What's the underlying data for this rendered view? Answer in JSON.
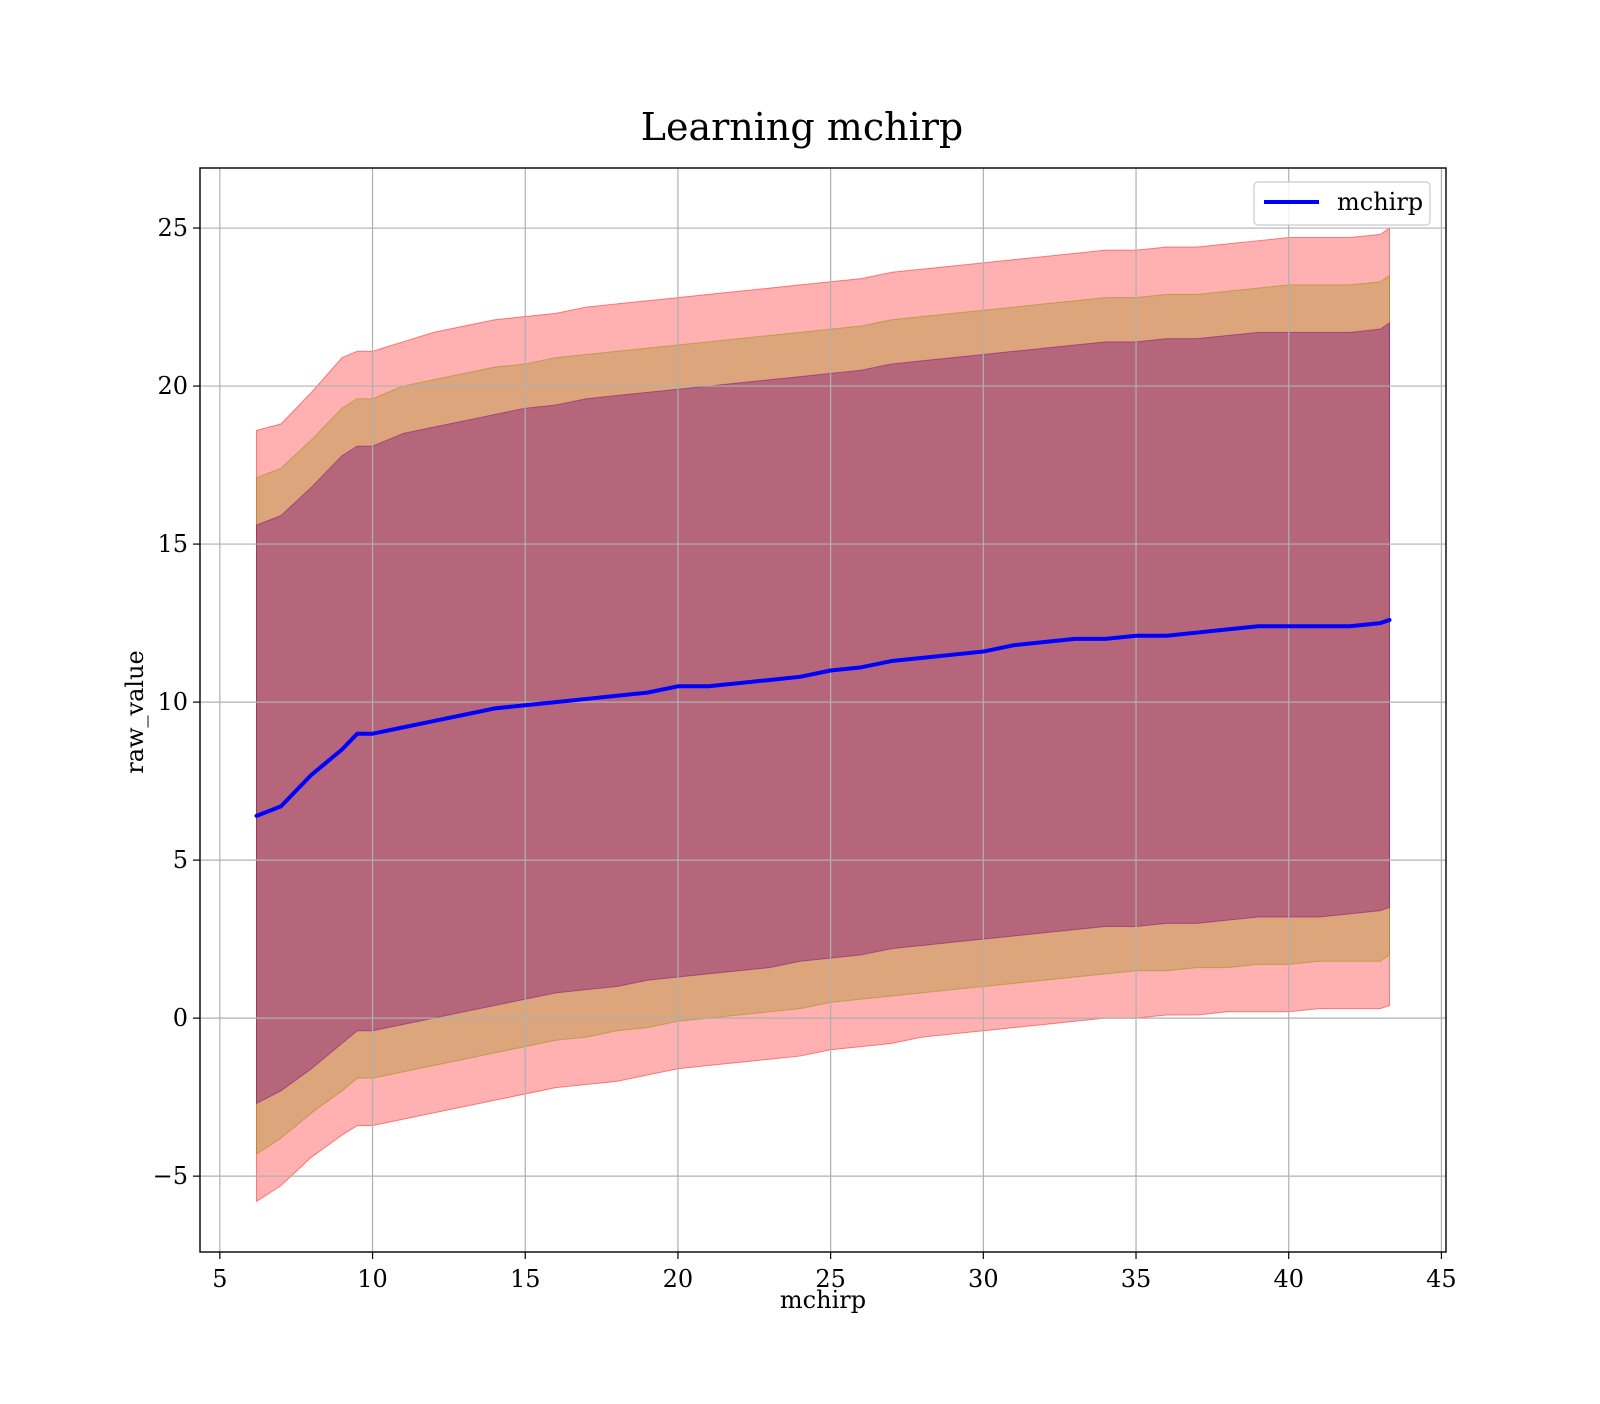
{
  "chart_data": {
    "type": "line",
    "title": "Learning mchirp",
    "xlabel": "mchirp",
    "ylabel": "raw_value",
    "xlim": [
      4.35,
      45.15
    ],
    "ylim": [
      -7.4,
      26.9
    ],
    "xticks": [
      5,
      10,
      15,
      20,
      25,
      30,
      35,
      40,
      45
    ],
    "xtick_labels": [
      "5",
      "10",
      "15",
      "20",
      "25",
      "30",
      "35",
      "40",
      "45"
    ],
    "yticks": [
      -5,
      0,
      5,
      10,
      15,
      20,
      25
    ],
    "ytick_labels": [
      "−5",
      "0",
      "5",
      "10",
      "15",
      "20",
      "25"
    ],
    "grid": true,
    "legend_position": "top-right",
    "colors": {
      "line": "#0000ff",
      "band_outer": "#ff0000",
      "band_middle": "#8c8c00",
      "band_inner": "#7a007a",
      "grid": "#b0b0b0"
    },
    "x": [
      6.2,
      7.0,
      8.0,
      9.0,
      9.5,
      10.0,
      11.0,
      12.0,
      13.0,
      14.0,
      15.0,
      16.0,
      17.0,
      18.0,
      19.0,
      20.0,
      21.0,
      22.0,
      23.0,
      24.0,
      25.0,
      26.0,
      27.0,
      28.0,
      29.0,
      30.0,
      31.0,
      32.0,
      33.0,
      34.0,
      35.0,
      36.0,
      37.0,
      38.0,
      39.0,
      40.0,
      41.0,
      42.0,
      43.0,
      43.3
    ],
    "series": [
      {
        "name": "mchirp",
        "values": [
          6.4,
          6.7,
          7.7,
          8.5,
          9.0,
          9.0,
          9.2,
          9.4,
          9.6,
          9.8,
          9.9,
          10.0,
          10.1,
          10.2,
          10.3,
          10.5,
          10.5,
          10.6,
          10.7,
          10.8,
          11.0,
          11.1,
          11.3,
          11.4,
          11.5,
          11.6,
          11.8,
          11.9,
          12.0,
          12.0,
          12.1,
          12.1,
          12.2,
          12.3,
          12.4,
          12.4,
          12.4,
          12.4,
          12.5,
          12.6
        ]
      }
    ],
    "bands": [
      {
        "level": "outer",
        "lower": [
          -5.8,
          -5.3,
          -4.4,
          -3.7,
          -3.4,
          -3.4,
          -3.2,
          -3.0,
          -2.8,
          -2.6,
          -2.4,
          -2.2,
          -2.1,
          -2.0,
          -1.8,
          -1.6,
          -1.5,
          -1.4,
          -1.3,
          -1.2,
          -1.0,
          -0.9,
          -0.8,
          -0.6,
          -0.5,
          -0.4,
          -0.3,
          -0.2,
          -0.1,
          0.0,
          0.0,
          0.1,
          0.1,
          0.2,
          0.2,
          0.2,
          0.3,
          0.3,
          0.3,
          0.4
        ],
        "upper": [
          18.6,
          18.8,
          19.8,
          20.9,
          21.1,
          21.1,
          21.4,
          21.7,
          21.9,
          22.1,
          22.2,
          22.3,
          22.5,
          22.6,
          22.7,
          22.8,
          22.9,
          23.0,
          23.1,
          23.2,
          23.3,
          23.4,
          23.6,
          23.7,
          23.8,
          23.9,
          24.0,
          24.1,
          24.2,
          24.3,
          24.3,
          24.4,
          24.4,
          24.5,
          24.6,
          24.7,
          24.7,
          24.7,
          24.8,
          25.0
        ]
      },
      {
        "level": "middle",
        "lower": [
          -4.3,
          -3.8,
          -3.0,
          -2.3,
          -1.9,
          -1.9,
          -1.7,
          -1.5,
          -1.3,
          -1.1,
          -0.9,
          -0.7,
          -0.6,
          -0.4,
          -0.3,
          -0.1,
          0.0,
          0.1,
          0.2,
          0.3,
          0.5,
          0.6,
          0.7,
          0.8,
          0.9,
          1.0,
          1.1,
          1.2,
          1.3,
          1.4,
          1.5,
          1.5,
          1.6,
          1.6,
          1.7,
          1.7,
          1.8,
          1.8,
          1.8,
          2.0
        ]
      },
      {
        "level": "inner",
        "lower": [
          -2.7,
          -2.3,
          -1.6,
          -0.8,
          -0.4,
          -0.4,
          -0.2,
          0.0,
          0.2,
          0.4,
          0.6,
          0.8,
          0.9,
          1.0,
          1.2,
          1.3,
          1.4,
          1.5,
          1.6,
          1.8,
          1.9,
          2.0,
          2.2,
          2.3,
          2.4,
          2.5,
          2.6,
          2.7,
          2.8,
          2.9,
          2.9,
          3.0,
          3.0,
          3.1,
          3.2,
          3.2,
          3.2,
          3.3,
          3.4,
          3.5
        ]
      }
    ],
    "band_uppers": {
      "middle": [
        17.1,
        17.4,
        18.3,
        19.3,
        19.6,
        19.6,
        20.0,
        20.2,
        20.4,
        20.6,
        20.7,
        20.9,
        21.0,
        21.1,
        21.2,
        21.3,
        21.4,
        21.5,
        21.6,
        21.7,
        21.8,
        21.9,
        22.1,
        22.2,
        22.3,
        22.4,
        22.5,
        22.6,
        22.7,
        22.8,
        22.8,
        22.9,
        22.9,
        23.0,
        23.1,
        23.2,
        23.2,
        23.2,
        23.3,
        23.5
      ],
      "inner": [
        15.6,
        15.9,
        16.8,
        17.8,
        18.1,
        18.1,
        18.5,
        18.7,
        18.9,
        19.1,
        19.3,
        19.4,
        19.6,
        19.7,
        19.8,
        19.9,
        20.0,
        20.1,
        20.2,
        20.3,
        20.4,
        20.5,
        20.7,
        20.8,
        20.9,
        21.0,
        21.1,
        21.2,
        21.3,
        21.4,
        21.4,
        21.5,
        21.5,
        21.6,
        21.7,
        21.7,
        21.7,
        21.7,
        21.8,
        22.0
      ]
    }
  }
}
